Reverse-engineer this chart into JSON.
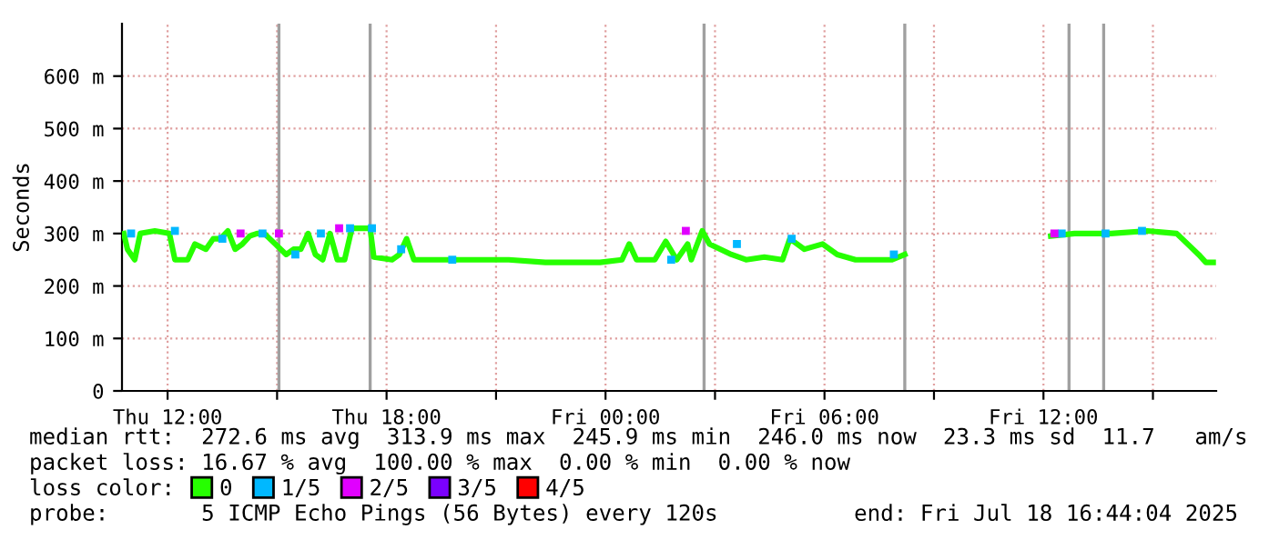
{
  "chart_data": {
    "type": "line",
    "ylabel": "Seconds",
    "legend_title": "loss color:",
    "legend": "bottom",
    "grid": true,
    "xlim": [
      "2025-07-17T10:45",
      "2025-07-18T16:44"
    ],
    "xticks": [
      {
        "value": "2025-07-17T12:00",
        "label": "Thu 12:00"
      },
      {
        "value": "2025-07-17T15:00",
        "label": null
      },
      {
        "value": "2025-07-17T18:00",
        "label": "Thu 18:00"
      },
      {
        "value": "2025-07-17T21:00",
        "label": null
      },
      {
        "value": "2025-07-18T00:00",
        "label": "Fri 00:00"
      },
      {
        "value": "2025-07-18T03:00",
        "label": null
      },
      {
        "value": "2025-07-18T06:00",
        "label": "Fri 06:00"
      },
      {
        "value": "2025-07-18T09:00",
        "label": null
      },
      {
        "value": "2025-07-18T12:00",
        "label": "Fri 12:00"
      },
      {
        "value": "2025-07-18T15:00",
        "label": null
      }
    ],
    "ylim": [
      0,
      700
    ],
    "yticks": [
      0,
      {
        "value": 100,
        "label": "100 m"
      },
      {
        "value": 200,
        "label": "200 m"
      },
      {
        "value": 300,
        "label": "300 m"
      },
      {
        "value": 400,
        "label": "400 m"
      },
      {
        "value": 500,
        "label": "500 m"
      },
      {
        "value": 600,
        "label": "600 m"
      }
    ],
    "series": [
      {
        "name": "0",
        "color": "#26ff00",
        "x": [
          "2025-07-17T10:48",
          "2025-07-17T10:54",
          "2025-07-17T11:00",
          "2025-07-17T11:06",
          "2025-07-17T11:15",
          "2025-07-17T11:39",
          "2025-07-17T12:03",
          "2025-07-17T12:12",
          "2025-07-17T12:33",
          "2025-07-17T12:45",
          "2025-07-17T13:03",
          "2025-07-17T13:15",
          "2025-07-17T13:27",
          "2025-07-17T13:39",
          "2025-07-17T13:51",
          "2025-07-17T14:03",
          "2025-07-17T14:15",
          "2025-07-17T14:27",
          "2025-07-17T14:39",
          "2025-07-17T14:57",
          "2025-07-17T15:15",
          "2025-07-17T15:27",
          "2025-07-17T15:39",
          "2025-07-17T15:51",
          "2025-07-17T16:03",
          "2025-07-17T16:15",
          "2025-07-17T16:27",
          "2025-07-17T16:39",
          "2025-07-17T16:51",
          "2025-07-17T17:03",
          "2025-07-17T17:33",
          "2025-07-17T17:39",
          "2025-07-17T18:09",
          "2025-07-17T18:21",
          "2025-07-17T18:33",
          "2025-07-17T18:45",
          "2025-07-17T19:21",
          "2025-07-17T21:21",
          "2025-07-17T22:21",
          "2025-07-17T23:51",
          "2025-07-18T00:27",
          "2025-07-18T00:39",
          "2025-07-18T00:51",
          "2025-07-18T01:21",
          "2025-07-18T01:39",
          "2025-07-18T01:57",
          "2025-07-18T02:15",
          "2025-07-18T02:21",
          "2025-07-18T02:39",
          "2025-07-18T02:51",
          "2025-07-18T03:09",
          "2025-07-18T03:27",
          "2025-07-18T03:51",
          "2025-07-18T04:21",
          "2025-07-18T04:51",
          "2025-07-18T05:03",
          "2025-07-18T05:27",
          "2025-07-18T05:57",
          "2025-07-18T06:21",
          "2025-07-18T06:51",
          "2025-07-18T07:21",
          "2025-07-18T07:51",
          "2025-07-18T08:12",
          "2025-07-18T08:30",
          "2025-07-18T12:12",
          "2025-07-18T12:51",
          "2025-07-18T13:51",
          "2025-07-18T14:51",
          "2025-07-18T15:39",
          "2025-07-18T15:57",
          "2025-07-18T16:15",
          "2025-07-18T16:27",
          "2025-07-18T16:39"
        ],
        "values": [
          300,
          270,
          260,
          250,
          300,
          305,
          300,
          250,
          250,
          280,
          270,
          290,
          290,
          305,
          270,
          280,
          295,
          300,
          300,
          280,
          260,
          270,
          270,
          300,
          260,
          250,
          300,
          250,
          250,
          310,
          310,
          255,
          250,
          260,
          290,
          250,
          250,
          250,
          245,
          245,
          250,
          280,
          250,
          250,
          285,
          250,
          280,
          250,
          305,
          280,
          270,
          260,
          250,
          255,
          250,
          290,
          270,
          280,
          260,
          250,
          250,
          250,
          260,
          null,
          295,
          300,
          300,
          305,
          300,
          280,
          260,
          245,
          245
        ]
      },
      {
        "name": "1/5",
        "type": "scatter",
        "marker": "square",
        "color": "#00b8ff",
        "x": [
          "2025-07-17T11:00",
          "2025-07-17T12:12",
          "2025-07-17T13:30",
          "2025-07-17T14:36",
          "2025-07-17T15:30",
          "2025-07-17T16:12",
          "2025-07-17T17:00",
          "2025-07-17T17:36",
          "2025-07-17T18:24",
          "2025-07-17T19:48",
          "2025-07-18T01:48",
          "2025-07-18T03:36",
          "2025-07-18T05:06",
          "2025-07-18T07:54",
          "2025-07-18T12:30",
          "2025-07-18T13:42",
          "2025-07-18T14:42"
        ],
        "values": [
          300,
          305,
          290,
          300,
          260,
          300,
          310,
          310,
          270,
          250,
          250,
          280,
          290,
          260,
          300,
          300,
          305
        ]
      },
      {
        "name": "2/5",
        "type": "scatter",
        "marker": "square",
        "color": "#e000ff",
        "x": [
          "2025-07-17T14:00",
          "2025-07-17T15:03",
          "2025-07-17T16:42",
          "2025-07-18T02:12",
          "2025-07-18T12:18"
        ],
        "values": [
          300,
          300,
          310,
          305,
          300
        ]
      },
      {
        "name": "3/5",
        "type": "scatter",
        "color": "#7b00ff"
      },
      {
        "name": "4/5",
        "type": "scatter",
        "color": "#ff0000"
      }
    ],
    "ref_lines": [
      {
        "axis": "x",
        "value": "2025-07-17T15:03",
        "color": "#a0a0a0"
      },
      {
        "axis": "x",
        "value": "2025-07-17T17:33",
        "color": "#a0a0a0"
      },
      {
        "axis": "x",
        "value": "2025-07-18T02:42",
        "color": "#a0a0a0"
      },
      {
        "axis": "x",
        "value": "2025-07-18T08:12",
        "color": "#a0a0a0"
      },
      {
        "axis": "x",
        "value": "2025-07-18T12:42",
        "color": "#a0a0a0"
      },
      {
        "axis": "x",
        "value": "2025-07-18T13:39",
        "color": "#a0a0a0"
      }
    ],
    "annotations": [
      "median rtt:  272.6 ms avg  313.9 ms max  245.9 ms min  246.0 ms now  23.3 ms sd  11.7   am/s",
      "packet loss: 16.67 % avg  100.00 % max  0.00 % min  0.00 % now",
      "probe:       5 ICMP Echo Pings (56 Bytes) every 120s",
      "end: Fri Jul 18 16:44:04 2025"
    ]
  }
}
